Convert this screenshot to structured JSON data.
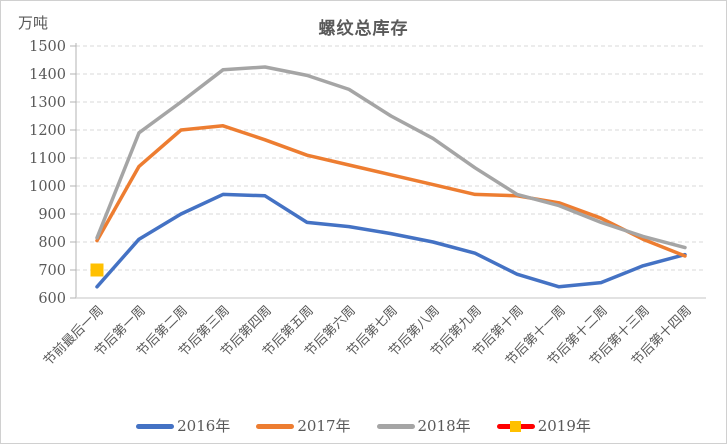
{
  "window": {
    "background": "#ffffff",
    "border_color": "#d0d0d0"
  },
  "chart_data": {
    "type": "line",
    "title": "螺纹总库存",
    "y_unit_label": "万吨",
    "xlabel": "",
    "ylabel": "万吨",
    "ylim": [
      600,
      1500
    ],
    "ytick_step": 100,
    "grid": "horizontal-dashed",
    "legend_position": "bottom",
    "colors": {
      "grid": "#d9d9d9",
      "axis_left": "#b3b3b3",
      "axis_bottom": "#d9d9d9",
      "text": "#595959"
    },
    "categories": [
      "节前最后一周",
      "节后第一周",
      "节后第二周",
      "节后第三周",
      "节后第四周",
      "节后第五周",
      "节后第六周",
      "节后第七周",
      "节后第八周",
      "节后第九周",
      "节后第十周",
      "节后第十一周",
      "节后第十二周",
      "节后第十三周",
      "节后第十四周"
    ],
    "series": [
      {
        "name": "2016年",
        "color": "#4472C4",
        "values": [
          640,
          810,
          900,
          970,
          965,
          870,
          855,
          830,
          800,
          760,
          685,
          640,
          655,
          715,
          755
        ]
      },
      {
        "name": "2017年",
        "color": "#ED7D31",
        "values": [
          805,
          1070,
          1200,
          1215,
          1165,
          1110,
          1075,
          1040,
          1005,
          970,
          965,
          940,
          885,
          810,
          750
        ]
      },
      {
        "name": "2018年",
        "color": "#A5A5A5",
        "values": [
          815,
          1190,
          1300,
          1415,
          1425,
          1395,
          1345,
          1250,
          1170,
          1065,
          970,
          930,
          870,
          820,
          780
        ]
      },
      {
        "name": "2019年",
        "color": "#FF0000",
        "marker": "square",
        "marker_color": "#FFC000",
        "values": [
          700,
          null,
          null,
          null,
          null,
          null,
          null,
          null,
          null,
          null,
          null,
          null,
          null,
          null,
          null
        ]
      }
    ]
  }
}
